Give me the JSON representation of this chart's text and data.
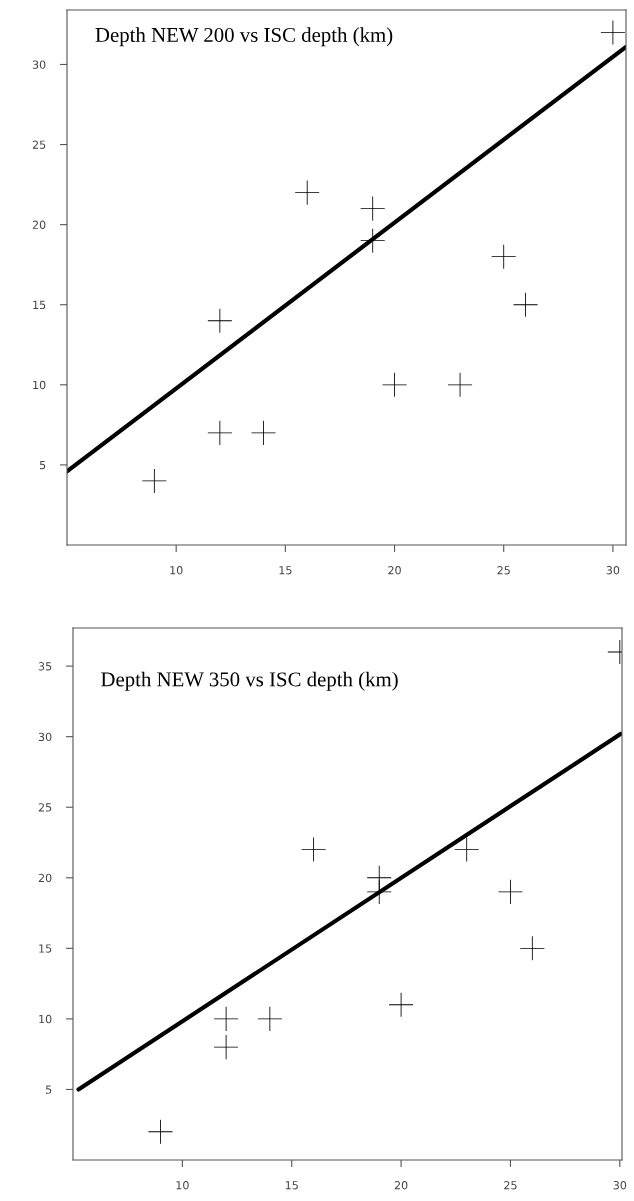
{
  "chart_data": [
    {
      "type": "scatter",
      "title": "Depth NEW 200 vs ISC depth (km)",
      "xlim": [
        5,
        30.6
      ],
      "ylim": [
        0,
        33.4
      ],
      "xticks": [
        10,
        15,
        20,
        25,
        30
      ],
      "yticks": [
        5,
        10,
        15,
        20,
        25,
        30
      ],
      "grid": false,
      "legend": false,
      "x": [
        9,
        12,
        12,
        14,
        16,
        19,
        19,
        20,
        23,
        25,
        26,
        30
      ],
      "series": [
        {
          "color": "#000000",
          "marker": "cross",
          "values": [
            4,
            7,
            14,
            7,
            22,
            21,
            19,
            10,
            10,
            18,
            15,
            32
          ]
        },
        {
          "type": "line",
          "color": "#000000",
          "x": [
            5,
            30.6
          ],
          "values": [
            4.6,
            31.1
          ]
        }
      ]
    },
    {
      "type": "scatter",
      "title": "Depth NEW 350 vs ISC depth (km)",
      "xlim": [
        5,
        30.1
      ],
      "ylim": [
        0,
        37.7
      ],
      "xticks": [
        10,
        15,
        20,
        25,
        30
      ],
      "yticks": [
        5,
        10,
        15,
        20,
        25,
        30,
        35
      ],
      "grid": false,
      "legend": false,
      "x": [
        9,
        12,
        12,
        14,
        16,
        19,
        19,
        20,
        23,
        25,
        26,
        30
      ],
      "series": [
        {
          "color": "#000000",
          "marker": "cross",
          "values": [
            2,
            10,
            8,
            10,
            22,
            20,
            19,
            11,
            22,
            19,
            15,
            36
          ]
        },
        {
          "type": "line",
          "color": "#000000",
          "x": [
            5.25,
            30.05
          ],
          "values": [
            5,
            30.2
          ]
        }
      ]
    }
  ]
}
